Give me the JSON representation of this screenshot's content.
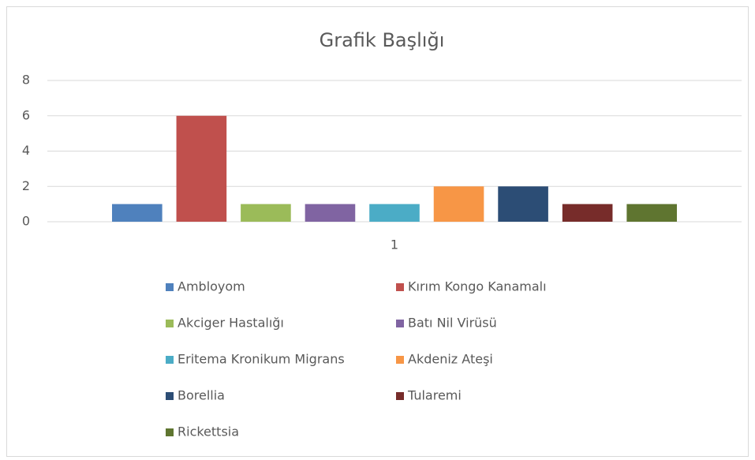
{
  "chart_data": {
    "type": "bar",
    "title": "Grafik Başlığı",
    "categories": [
      "1"
    ],
    "series": [
      {
        "name": "Ambloyom",
        "color": "#4f81bd",
        "values": [
          1
        ]
      },
      {
        "name": "Kırım Kongo Kanamalı",
        "color": "#c0504d",
        "values": [
          6
        ]
      },
      {
        "name": "Akciger Hastalığı",
        "color": "#9bbb59",
        "values": [
          1
        ]
      },
      {
        "name": "Batı Nil Virüsü",
        "color": "#8064a2",
        "values": [
          1
        ]
      },
      {
        "name": "Eritema Kronikum Migrans",
        "color": "#4bacc6",
        "values": [
          1
        ]
      },
      {
        "name": "Akdeniz Ateşi",
        "color": "#f79646",
        "values": [
          2
        ]
      },
      {
        "name": "Borellia",
        "color": "#2c4d75",
        "values": [
          2
        ]
      },
      {
        "name": "Tularemi",
        "color": "#772c2a",
        "values": [
          1
        ]
      },
      {
        "name": "Rickettsia",
        "color": "#5f7530",
        "values": [
          1
        ]
      }
    ],
    "ylim": [
      0,
      8
    ],
    "yticks": [
      0,
      2,
      4,
      6,
      8
    ],
    "grid": true,
    "legend": "bottom"
  }
}
